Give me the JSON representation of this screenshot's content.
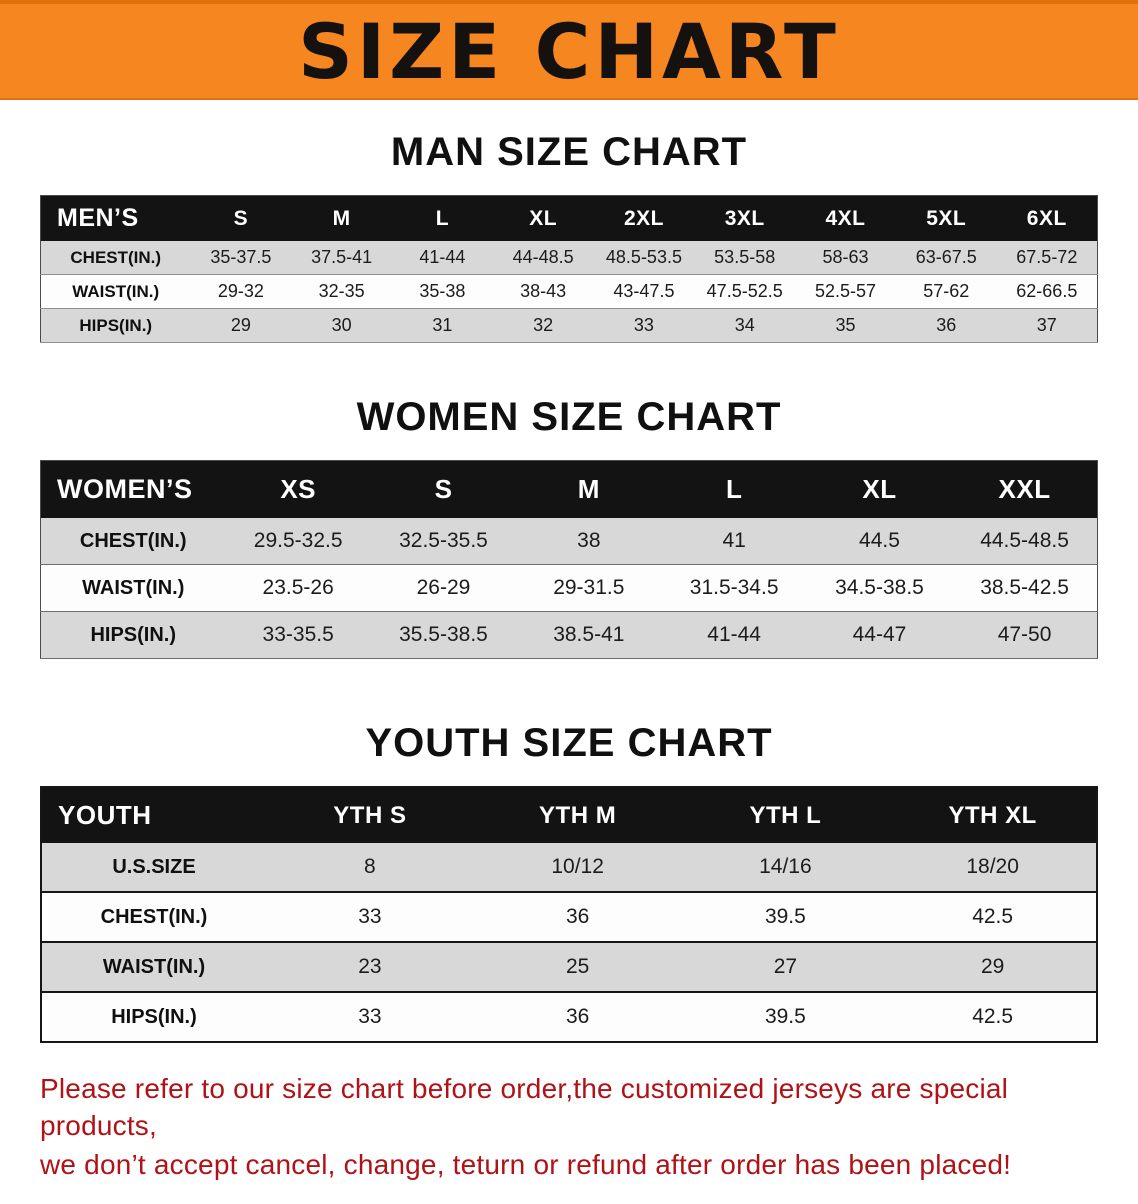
{
  "banner": {
    "title": "SIZE CHART"
  },
  "colors": {
    "banner-bg": "#f6861f",
    "table-header-bg": "#131313",
    "row-stripe": "#d8d8d8",
    "notice-color": "#b01217"
  },
  "sections": [
    {
      "heading": "MAN SIZE CHART",
      "table": {
        "header": [
          "MEN’S",
          "S",
          "M",
          "L",
          "XL",
          "2XL",
          "3XL",
          "4XL",
          "5XL",
          "6XL"
        ],
        "rows": [
          [
            "CHEST(IN.)",
            "35-37.5",
            "37.5-41",
            "41-44",
            "44-48.5",
            "48.5-53.5",
            "53.5-58",
            "58-63",
            "63-67.5",
            "67.5-72"
          ],
          [
            "WAIST(IN.)",
            "29-32",
            "32-35",
            "35-38",
            "38-43",
            "43-47.5",
            "47.5-52.5",
            "52.5-57",
            "57-62",
            "62-66.5"
          ],
          [
            "HIPS(IN.)",
            "29",
            "30",
            "31",
            "32",
            "33",
            "34",
            "35",
            "36",
            "37"
          ]
        ]
      }
    },
    {
      "heading": "WOMEN SIZE CHART",
      "table": {
        "header": [
          "WOMEN’S",
          "XS",
          "S",
          "M",
          "L",
          "XL",
          "XXL"
        ],
        "rows": [
          [
            "CHEST(IN.)",
            "29.5-32.5",
            "32.5-35.5",
            "38",
            "41",
            "44.5",
            "44.5-48.5"
          ],
          [
            "WAIST(IN.)",
            "23.5-26",
            "26-29",
            "29-31.5",
            "31.5-34.5",
            "34.5-38.5",
            "38.5-42.5"
          ],
          [
            "HIPS(IN.)",
            "33-35.5",
            "35.5-38.5",
            "38.5-41",
            "41-44",
            "44-47",
            "47-50"
          ]
        ]
      }
    },
    {
      "heading": "YOUTH SIZE CHART",
      "table": {
        "header": [
          "YOUTH",
          "YTH S",
          "YTH M",
          "YTH L",
          "YTH XL"
        ],
        "rows": [
          [
            "U.S.SIZE",
            "8",
            "10/12",
            "14/16",
            "18/20"
          ],
          [
            "CHEST(IN.)",
            "33",
            "36",
            "39.5",
            "42.5"
          ],
          [
            "WAIST(IN.)",
            "23",
            "25",
            "27",
            "29"
          ],
          [
            "HIPS(IN.)",
            "33",
            "36",
            "39.5",
            "42.5"
          ]
        ]
      }
    }
  ],
  "footer": {
    "line1": "Please refer to our size chart before order,the customized jerseys are special products,",
    "line2": "we don’t accept cancel, change, teturn or refund after order has been placed!"
  }
}
